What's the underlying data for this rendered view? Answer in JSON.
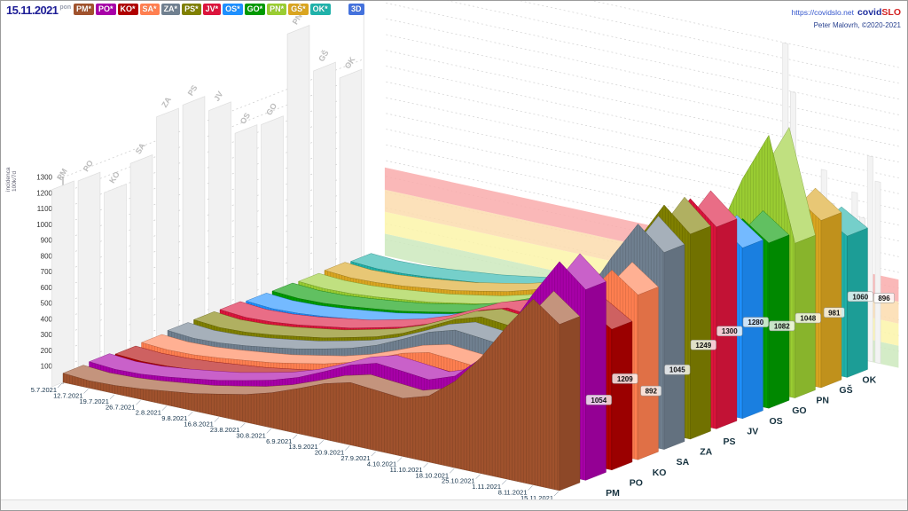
{
  "header": {
    "date": "15.11.2021",
    "day_abbrev": "pon",
    "link": "https://covidslo.net",
    "logo_covid": "covid",
    "logo_slo": "SLO",
    "credit": "Peter Malovrh, ©2020-2021",
    "view_button": "3D",
    "view_button_color": "#4472dd"
  },
  "chart_data": {
    "type": "area",
    "subtype": "3d-ribbon-chart",
    "title": "",
    "ylabel": "incidenca 100k/7d",
    "ylim": [
      0,
      1300
    ],
    "y_tick_step": 100,
    "y_ticks": [
      100,
      200,
      300,
      400,
      500,
      600,
      700,
      800,
      900,
      1000,
      1100,
      1200,
      1300
    ],
    "grid": "dashed",
    "x_dates": [
      "5.7.2021",
      "12.7.2021",
      "19.7.2021",
      "26.7.2021",
      "2.8.2021",
      "9.8.2021",
      "16.8.2021",
      "23.8.2021",
      "30.8.2021",
      "6.9.2021",
      "13.9.2021",
      "20.9.2021",
      "27.9.2021",
      "4.10.2021",
      "11.10.2021",
      "18.10.2021",
      "25.10.2021",
      "1.11.2021",
      "8.11.2021",
      "15.11.2021"
    ],
    "regions": [
      {
        "code": "PM",
        "button_label": "PM*",
        "color": "#a0522d",
        "final_value": 1054,
        "ghost_bar_value": 1250,
        "weekly_values": [
          58,
          46,
          52,
          67,
          88,
          110,
          142,
          176,
          223,
          286,
          353,
          396,
          382,
          368,
          419,
          549,
          737,
          972,
          1179,
          1054
        ]
      },
      {
        "code": "PO",
        "button_label": "PO*",
        "color": "#a800a8",
        "final_value": 1209,
        "ghost_bar_value": 1240,
        "weekly_values": [
          66,
          53,
          59,
          77,
          101,
          127,
          163,
          201,
          255,
          328,
          405,
          453,
          438,
          421,
          480,
          629,
          845,
          1113,
          1351,
          1209
        ]
      },
      {
        "code": "KO",
        "button_label": "KO*",
        "color": "#b00000",
        "final_value": 892,
        "ghost_bar_value": 1100,
        "weekly_values": [
          49,
          39,
          44,
          57,
          75,
          93,
          120,
          148,
          188,
          241,
          298,
          334,
          322,
          310,
          353,
          463,
          622,
          820,
          995,
          892
        ]
      },
      {
        "code": "SA",
        "button_label": "SA*",
        "color": "#ff7f50",
        "final_value": 1045,
        "ghost_bar_value": 1220,
        "weekly_values": [
          57,
          46,
          51,
          67,
          87,
          109,
          141,
          174,
          220,
          283,
          350,
          391,
          378,
          364,
          414,
          543,
          730,
          961,
          1167,
          1045
        ]
      },
      {
        "code": "ZA",
        "button_label": "ZA*",
        "color": "#708090",
        "final_value": 1249,
        "ghost_bar_value": 1450,
        "weekly_values": [
          68,
          54,
          61,
          79,
          104,
          131,
          168,
          208,
          263,
          338,
          418,
          468,
          452,
          435,
          495,
          649,
          872,
          1149,
          1394,
          1249
        ]
      },
      {
        "code": "PS",
        "button_label": "PS*",
        "color": "#808000",
        "final_value": 1300,
        "ghost_bar_value": 1460,
        "weekly_values": [
          71,
          57,
          64,
          83,
          109,
          136,
          175,
          216,
          274,
          352,
          434,
          486,
          470,
          452,
          514,
          675,
          906,
          1194,
          1449,
          1300
        ]
      },
      {
        "code": "JV",
        "button_label": "JV*",
        "color": "#dc143c",
        "final_value": 1280,
        "ghost_bar_value": 1360,
        "weekly_values": [
          70,
          56,
          63,
          81,
          107,
          133,
          172,
          212,
          269,
          346,
          427,
          478,
          462,
          444,
          506,
          664,
          891,
          1174,
          1424,
          1280
        ]
      },
      {
        "code": "OS",
        "button_label": "OS*",
        "color": "#1e90ff",
        "final_value": 1082,
        "ghost_bar_value": 1150,
        "weekly_values": [
          59,
          47,
          53,
          69,
          90,
          113,
          145,
          179,
          227,
          292,
          361,
          404,
          390,
          375,
          427,
          561,
          753,
          992,
          1203,
          1082
        ]
      },
      {
        "code": "GO",
        "button_label": "GO*",
        "color": "#009a00",
        "final_value": 1048,
        "ghost_bar_value": 1140,
        "weekly_values": [
          57,
          46,
          51,
          67,
          87,
          109,
          141,
          174,
          220,
          283,
          350,
          391,
          378,
          364,
          414,
          543,
          730,
          961,
          1167,
          1048
        ]
      },
      {
        "code": "PN",
        "button_label": "PN*",
        "color": "#9acd32",
        "final_value": 981,
        "ghost_bar_value": 1650,
        "weekly_values": [
          53,
          43,
          48,
          62,
          82,
          102,
          132,
          163,
          206,
          265,
          328,
          367,
          354,
          341,
          388,
          640,
          920,
          1320,
          1630,
          981
        ]
      },
      {
        "code": "GŠ",
        "button_label": "GŠ*",
        "color": "#daa520",
        "final_value": 1060,
        "ghost_bar_value": 1350,
        "weekly_values": [
          58,
          46,
          52,
          67,
          88,
          110,
          142,
          176,
          223,
          286,
          353,
          396,
          382,
          368,
          419,
          549,
          737,
          972,
          1179,
          1060
        ]
      },
      {
        "code": "OK",
        "button_label": "OK*",
        "color": "#20b2aa",
        "final_value": 896,
        "ghost_bar_value": 1240,
        "weekly_values": [
          49,
          39,
          44,
          57,
          75,
          93,
          120,
          148,
          188,
          241,
          298,
          334,
          322,
          310,
          353,
          463,
          622,
          820,
          995,
          896
        ]
      }
    ],
    "threshold_bands": [
      {
        "from": 0,
        "to": 140,
        "color": "#cde9bd"
      },
      {
        "from": 140,
        "to": 280,
        "color": "#fcf4a9"
      },
      {
        "from": 280,
        "to": 420,
        "color": "#fcdcae"
      },
      {
        "from": 420,
        "to": 560,
        "color": "#f9abab"
      }
    ],
    "background_histogram": [
      700,
      1900,
      1600,
      1000,
      850,
      750,
      1150,
      950,
      800,
      700,
      1050,
      900,
      1300,
      1150
    ],
    "legend_position": "top",
    "view_mode": "3D"
  }
}
